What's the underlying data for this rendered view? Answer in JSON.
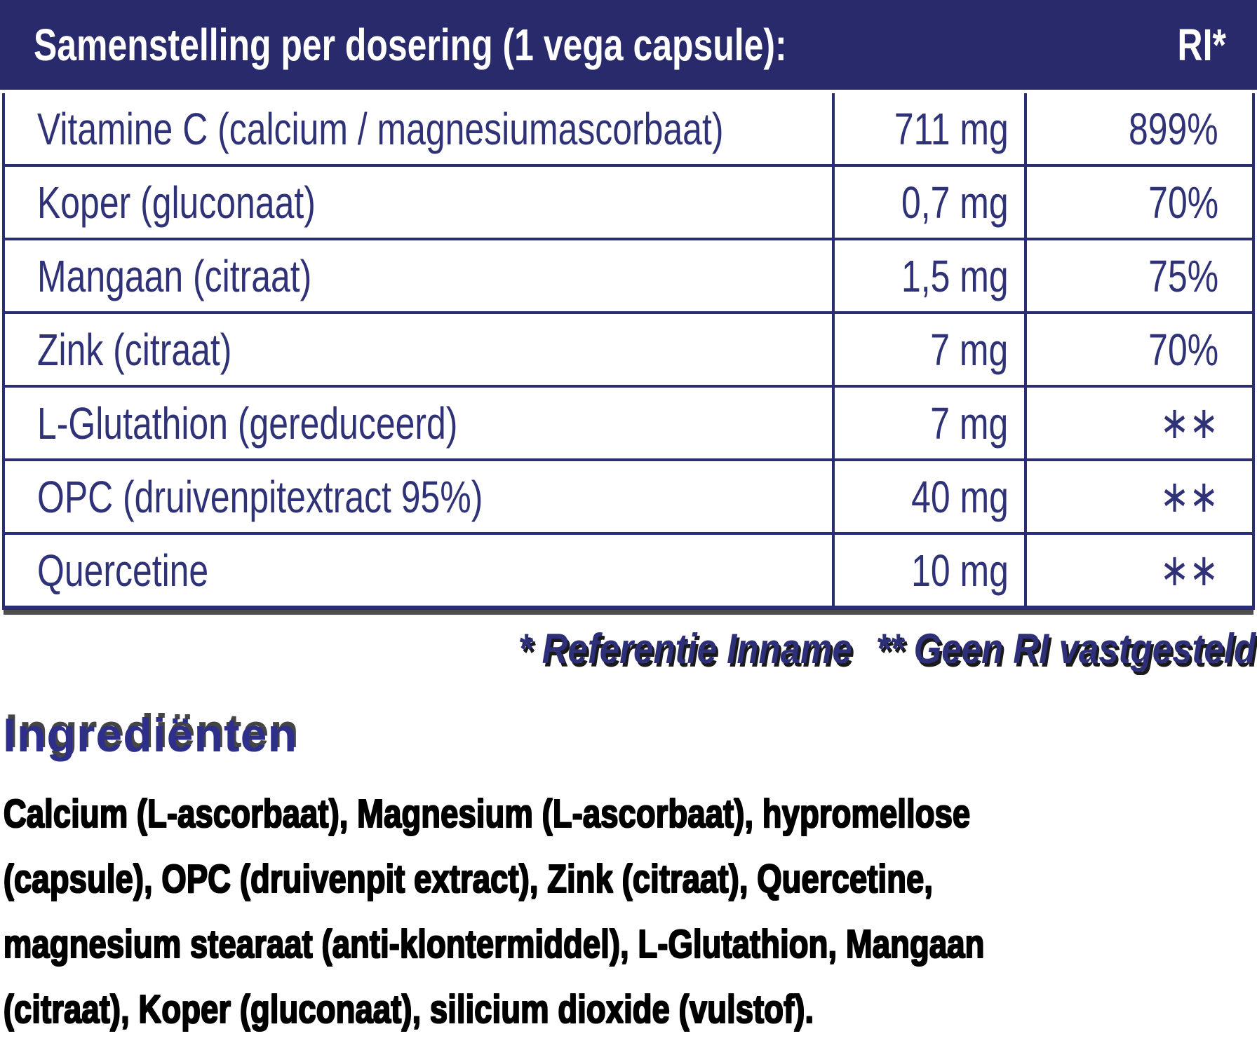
{
  "colors": {
    "header_background": "#292a6b",
    "table_border": "#2b2d72",
    "table_text": "#303278",
    "footnote_text": "#2d2f78",
    "footnote_shadow": "#1a1a1a",
    "heading_text": "#2e2f8a",
    "heading_shadow": "#454545",
    "body_text": "#000000"
  },
  "header": {
    "title": "Samenstelling per dosering (1 vega capsule):",
    "ri_label": "RI*"
  },
  "table": {
    "rows": [
      {
        "name": "Vitamine C (calcium / magnesiumascorbaat)",
        "amount": "711 mg",
        "ri": "899%"
      },
      {
        "name": "Koper (gluconaat)",
        "amount": "0,7 mg",
        "ri": "70%"
      },
      {
        "name": "Mangaan (citraat)",
        "amount": "1,5 mg",
        "ri": "75%"
      },
      {
        "name": "Zink (citraat)",
        "amount": "7 mg",
        "ri": "70%"
      },
      {
        "name": "L-Glutathion (gereduceerd)",
        "amount": "7 mg",
        "ri": "∗∗"
      },
      {
        "name": "OPC (druivenpitextract 95%)",
        "amount": "40 mg",
        "ri": "∗∗"
      },
      {
        "name": "Quercetine",
        "amount": "10 mg",
        "ri": "∗∗"
      }
    ]
  },
  "footnotes": {
    "reference": "* Referentie Inname",
    "no_ri": "** Geen RI vastgesteld"
  },
  "ingredients": {
    "heading": "Ingrediënten",
    "lines": [
      "Calcium (L-ascorbaat), Magnesium (L-ascorbaat), hypromellose",
      "(capsule), OPC (druivenpit extract), Zink (citraat), Quercetine,",
      "magnesium stearaat (anti-klontermiddel), L-Glutathion, Mangaan",
      "(citraat), Koper (gluconaat), silicium dioxide (vulstof)."
    ]
  }
}
